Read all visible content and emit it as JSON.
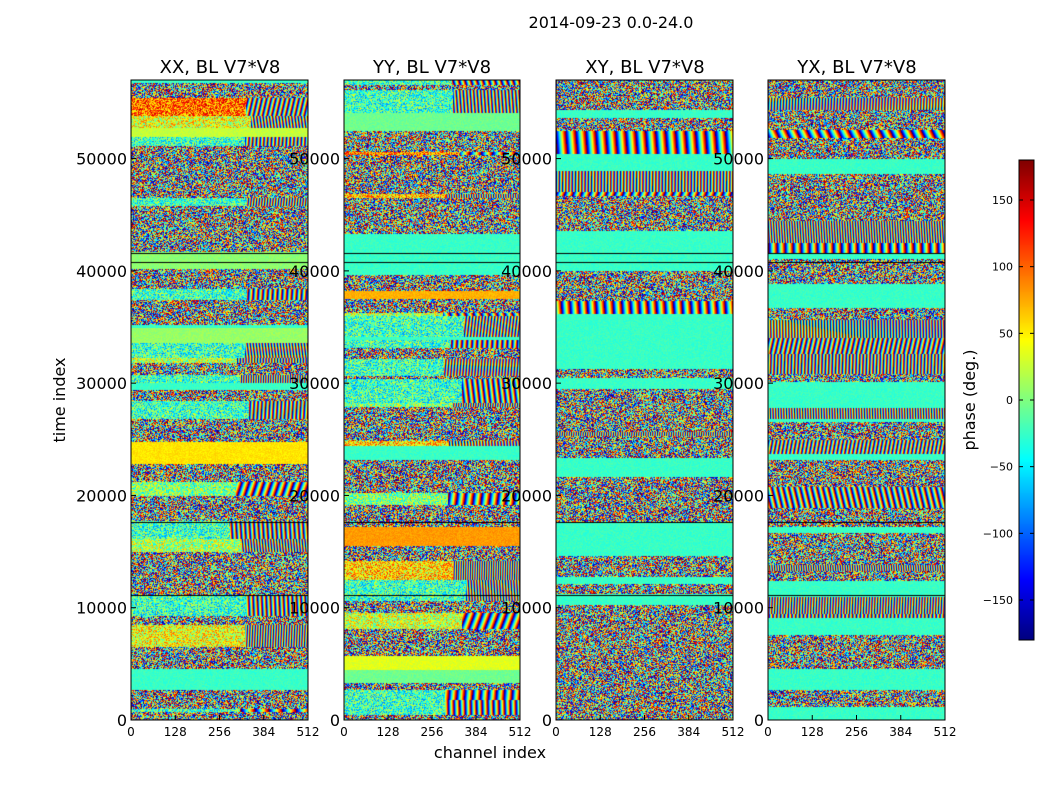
{
  "chart_data": {
    "type": "heatmap",
    "title": "2014-09-23 0.0-24.0",
    "xlabel": "channel index",
    "ylabel": "time index",
    "panels": [
      {
        "title": "XX, BL V7*V8"
      },
      {
        "title": "YY, BL V7*V8"
      },
      {
        "title": "XY, BL V7*V8"
      },
      {
        "title": "YX, BL V7*V8"
      }
    ],
    "xlim": [
      0,
      512
    ],
    "ylim": [
      0,
      57000
    ],
    "x_ticks": [
      0,
      128,
      256,
      384,
      512
    ],
    "y_ticks": [
      0,
      10000,
      20000,
      30000,
      40000,
      50000
    ],
    "colorbar": {
      "label": "phase (deg.)",
      "range": [
        -180,
        180
      ],
      "ticks": [
        -150,
        -100,
        -50,
        0,
        50,
        100,
        150
      ],
      "colormap": "jet"
    }
  }
}
